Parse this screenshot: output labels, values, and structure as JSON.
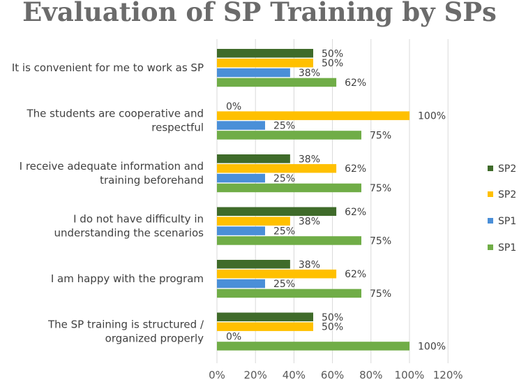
{
  "chart_data": {
    "type": "bar",
    "orientation": "horizontal",
    "title": "Evaluation of SP Training by SPs",
    "categories": [
      [
        "It is convenient for me to work as SP"
      ],
      [
        "The students are cooperative and",
        "respectful"
      ],
      [
        "I receive adequate information and",
        "training beforehand"
      ],
      [
        "I do not have difficulty in",
        "understanding the scenarios"
      ],
      [
        "I am happy with the program"
      ],
      [
        "The SP training is structured /",
        "organized properly"
      ]
    ],
    "series": [
      {
        "name": "SP2",
        "color": "#3f6b2a",
        "values": [
          50,
          0,
          38,
          62,
          38,
          50
        ],
        "labels": [
          "50%",
          "0%",
          "38%",
          "62%",
          "38%",
          "50%"
        ]
      },
      {
        "name": "SP2",
        "color": "#ffc000",
        "values": [
          50,
          100,
          62,
          38,
          62,
          50
        ],
        "labels": [
          "50%",
          "100%",
          "62%",
          "38%",
          "62%",
          "50%"
        ]
      },
      {
        "name": "SP1",
        "color": "#4a8fd8",
        "values": [
          38,
          25,
          25,
          25,
          25,
          0
        ],
        "labels": [
          "38%",
          "25%",
          "25%",
          "25%",
          "25%",
          "0%"
        ]
      },
      {
        "name": "SP1",
        "color": "#70ad47",
        "values": [
          62,
          75,
          75,
          75,
          75,
          100
        ],
        "labels": [
          "62%",
          "75%",
          "75%",
          "75%",
          "75%",
          "100%"
        ]
      }
    ],
    "xlim": [
      0,
      120
    ],
    "xticks": [
      0,
      20,
      40,
      60,
      80,
      100,
      120
    ],
    "xtick_labels": [
      "0%",
      "20%",
      "40%",
      "60%",
      "80%",
      "100%",
      "120%"
    ],
    "grid": true,
    "legend_position": "right"
  }
}
